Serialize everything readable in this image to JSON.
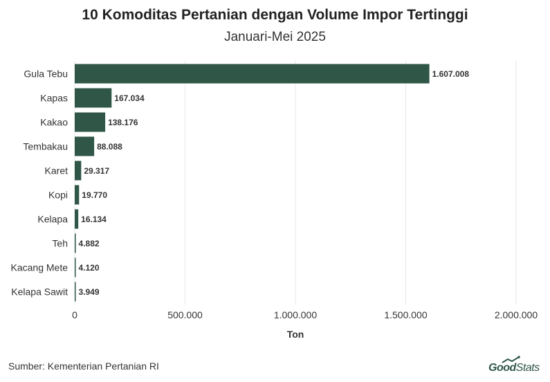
{
  "chart_data": {
    "type": "bar",
    "orientation": "horizontal",
    "title": "10 Komoditas Pertanian dengan Volume Impor Tertinggi",
    "subtitle": "Januari-Mei 2025",
    "xlabel": "Ton",
    "categories": [
      "Gula Tebu",
      "Kapas",
      "Kakao",
      "Tembakau",
      "Karet",
      "Kopi",
      "Kelapa",
      "Teh",
      "Kacang Mete",
      "Kelapa Sawit"
    ],
    "values": [
      1607008,
      167034,
      138176,
      88088,
      29317,
      19770,
      16134,
      4882,
      4120,
      3949
    ],
    "value_labels": [
      "1.607.008",
      "167.034",
      "138.176",
      "88.088",
      "29.317",
      "19.770",
      "16.134",
      "4.882",
      "4.120",
      "3.949"
    ],
    "xlim": [
      0,
      2000000
    ],
    "x_ticks": [
      0,
      500000,
      1000000,
      1500000,
      2000000
    ],
    "x_tick_labels": [
      "0",
      "500.000",
      "1.000.000",
      "1.500.000",
      "2.000.000"
    ],
    "grid": true,
    "bar_color": "#2f5646"
  },
  "source": "Sumber: Kementerian Pertanian RI",
  "brand": {
    "good": "Good",
    "stats": "Stats",
    "color": "#2f5646"
  }
}
